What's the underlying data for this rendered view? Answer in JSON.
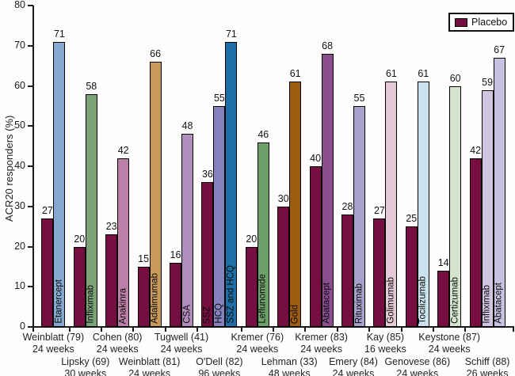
{
  "chart_data": {
    "type": "bar",
    "title": "",
    "ylabel": "ACR20 responders (%)",
    "ylim": [
      0,
      80
    ],
    "yticks": [
      0,
      10,
      20,
      30,
      40,
      50,
      60,
      70,
      80
    ],
    "grid": false,
    "legend_position": "top-right",
    "legend": [
      {
        "label": "Placebo",
        "color": "#760E41"
      }
    ],
    "groups": [
      {
        "study": "Weinblatt (79)",
        "duration": "24 weeks",
        "label_row": 1,
        "bars": [
          {
            "name": "Placebo",
            "value": 27,
            "color": "#760E41",
            "inner_label": ""
          },
          {
            "name": "Etanercept",
            "value": 71,
            "color": "#86A9D0",
            "inner_label": "Etanercept"
          }
        ]
      },
      {
        "study": "Lipsky (69)",
        "duration": "30 weeks",
        "label_row": 2,
        "bars": [
          {
            "name": "Placebo",
            "value": 20,
            "color": "#760E41",
            "inner_label": ""
          },
          {
            "name": "Infliximab",
            "value": 58,
            "color": "#7BA377",
            "inner_label": "Infliximab"
          }
        ]
      },
      {
        "study": "Cohen (80)",
        "duration": "24 weeks",
        "label_row": 1,
        "bars": [
          {
            "name": "Placebo",
            "value": 23,
            "color": "#760E41",
            "inner_label": ""
          },
          {
            "name": "Anakinra",
            "value": 42,
            "color": "#BC80A8",
            "inner_label": "Anakinra"
          }
        ]
      },
      {
        "study": "Weinblatt (81)",
        "duration": "24 weeks",
        "label_row": 2,
        "bars": [
          {
            "name": "Placebo",
            "value": 15,
            "color": "#760E41",
            "inner_label": ""
          },
          {
            "name": "Adalimumab",
            "value": 66,
            "color": "#C9995C",
            "inner_label": "Adalimumab"
          }
        ]
      },
      {
        "study": "Tugwell (41)",
        "duration": "24 weeks",
        "label_row": 1,
        "bars": [
          {
            "name": "Placebo",
            "value": 16,
            "color": "#760E41",
            "inner_label": ""
          },
          {
            "name": "CSA",
            "value": 48,
            "color": "#AF8EBD",
            "inner_label": "CSA"
          }
        ]
      },
      {
        "study": "O'Dell (82)",
        "duration": "96 weeks",
        "label_row": 2,
        "bars": [
          {
            "name": "SSZ",
            "value": 36,
            "color": "#760E41",
            "inner_label": "SSZ"
          },
          {
            "name": "HCQ",
            "value": 55,
            "color": "#8781BE",
            "inner_label": "HCQ"
          },
          {
            "name": "SSZ and HCQ",
            "value": 71,
            "color": "#1D6FA5",
            "inner_label": "SSZ and HCQ"
          }
        ]
      },
      {
        "study": "Kremer (76)",
        "duration": "24 weeks",
        "label_row": 1,
        "bars": [
          {
            "name": "Placebo",
            "value": 20,
            "color": "#760E41",
            "inner_label": ""
          },
          {
            "name": "Leflunomide",
            "value": 46,
            "color": "#6FA06A",
            "inner_label": "Leflunomide"
          }
        ]
      },
      {
        "study": "Lehman (33)",
        "duration": "48 weeks",
        "label_row": 2,
        "bars": [
          {
            "name": "Placebo",
            "value": 30,
            "color": "#760E41",
            "inner_label": ""
          },
          {
            "name": "Gold",
            "value": 61,
            "color": "#9E5E10",
            "inner_label": "Gold"
          }
        ]
      },
      {
        "study": "Kremer (83)",
        "duration": "24 weeks",
        "label_row": 1,
        "bars": [
          {
            "name": "Placebo",
            "value": 40,
            "color": "#760E41",
            "inner_label": ""
          },
          {
            "name": "Abatacept",
            "value": 68,
            "color": "#8A4D8E",
            "inner_label": "Abatacept"
          }
        ]
      },
      {
        "study": "Emery (84)",
        "duration": "24 weeks",
        "label_row": 2,
        "bars": [
          {
            "name": "Placebo",
            "value": 28,
            "color": "#760E41",
            "inner_label": ""
          },
          {
            "name": "Rituximab",
            "value": 55,
            "color": "#A7A2CC",
            "inner_label": "Rituximab"
          }
        ]
      },
      {
        "study": "Kay (85)",
        "duration": "16 weeks",
        "label_row": 1,
        "bars": [
          {
            "name": "Placebo",
            "value": 27,
            "color": "#760E41",
            "inner_label": ""
          },
          {
            "name": "Golimumab",
            "value": 61,
            "color": "#E3CAD6",
            "inner_label": "Golimumab"
          }
        ]
      },
      {
        "study": "Genovese (86)",
        "duration": "24 weeks",
        "label_row": 2,
        "bars": [
          {
            "name": "Placebo",
            "value": 25,
            "color": "#760E41",
            "inner_label": ""
          },
          {
            "name": "Tocilizumab",
            "value": 61,
            "color": "#CBE1ED",
            "inner_label": "Tocilizumab"
          }
        ]
      },
      {
        "study": "Keystone (87)",
        "duration": "24 weeks",
        "label_row": 1,
        "bars": [
          {
            "name": "Placebo",
            "value": 14,
            "color": "#760E41",
            "inner_label": ""
          },
          {
            "name": "Certizumab",
            "value": 60,
            "color": "#D3E3CE",
            "inner_label": "Certizumab"
          }
        ]
      },
      {
        "study": "Schiff (88)",
        "duration": "26 weeks",
        "label_row": 2,
        "bars": [
          {
            "name": "Placebo",
            "value": 42,
            "color": "#760E41",
            "inner_label": ""
          },
          {
            "name": "Infliximab",
            "value": 59,
            "color": "#D0C4E0",
            "inner_label": "Infliximab"
          },
          {
            "name": "Abatacept",
            "value": 67,
            "color": "#C6C3E2",
            "inner_label": "Abatacept"
          }
        ]
      }
    ]
  }
}
